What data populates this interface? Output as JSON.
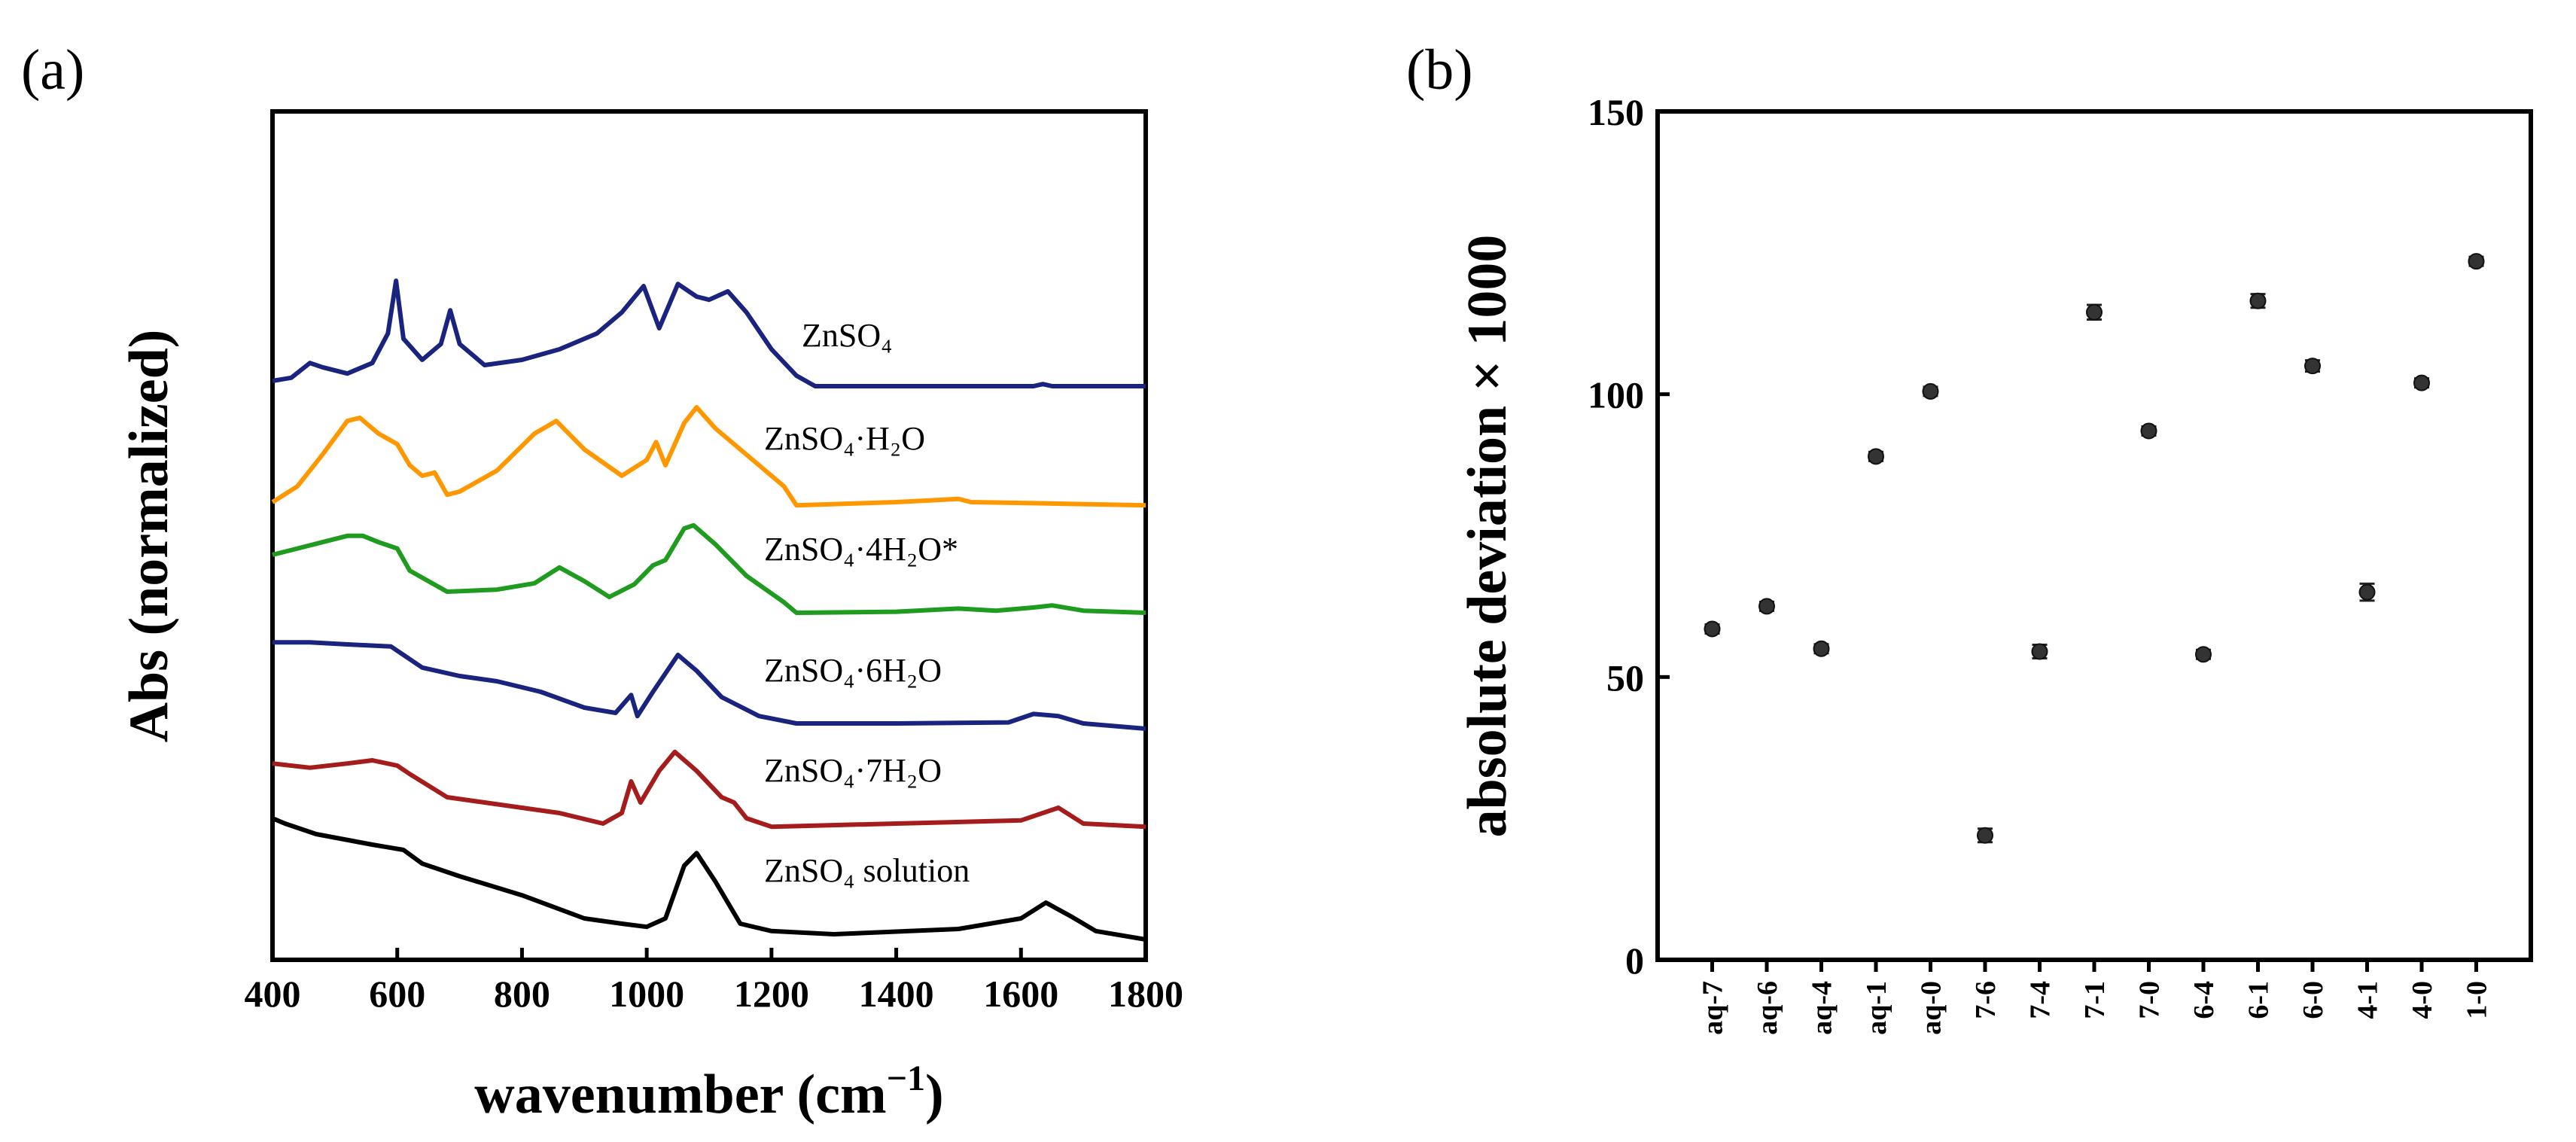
{
  "chart_data": [
    {
      "panel": "(a)",
      "type": "line",
      "xlabel": "wavenumber (cm",
      "xlabel_sup": "−1",
      "xlabel_close": ")",
      "ylabel": "Abs (normalized)",
      "xlim": [
        400,
        1800
      ],
      "xticks": [
        400,
        600,
        800,
        1000,
        1200,
        1400,
        1600,
        1800
      ],
      "yticks": [],
      "series": [
        {
          "name": "ZnSO₄",
          "color": "#1a237e",
          "baseline": 5.3,
          "points": [
            [
              400,
              0.05
            ],
            [
              430,
              0.08
            ],
            [
              460,
              0.22
            ],
            [
              480,
              0.18
            ],
            [
              520,
              0.12
            ],
            [
              560,
              0.22
            ],
            [
              585,
              0.5
            ],
            [
              598,
              1.0
            ],
            [
              610,
              0.45
            ],
            [
              640,
              0.25
            ],
            [
              670,
              0.4
            ],
            [
              685,
              0.72
            ],
            [
              700,
              0.4
            ],
            [
              740,
              0.2
            ],
            [
              800,
              0.25
            ],
            [
              860,
              0.35
            ],
            [
              920,
              0.5
            ],
            [
              960,
              0.7
            ],
            [
              995,
              0.95
            ],
            [
              1020,
              0.55
            ],
            [
              1050,
              0.97
            ],
            [
              1080,
              0.85
            ],
            [
              1100,
              0.82
            ],
            [
              1130,
              0.9
            ],
            [
              1160,
              0.7
            ],
            [
              1200,
              0.35
            ],
            [
              1240,
              0.1
            ],
            [
              1270,
              0.0
            ],
            [
              1400,
              0.0
            ],
            [
              1620,
              0.0
            ],
            [
              1635,
              0.02
            ],
            [
              1650,
              0.0
            ],
            [
              1800,
              0.0
            ]
          ]
        },
        {
          "name": "ZnSO₄·H₂O",
          "color": "#ff9800",
          "baseline": 4.15,
          "points": [
            [
              400,
              0.05
            ],
            [
              440,
              0.2
            ],
            [
              480,
              0.5
            ],
            [
              520,
              0.82
            ],
            [
              540,
              0.85
            ],
            [
              570,
              0.7
            ],
            [
              600,
              0.6
            ],
            [
              620,
              0.4
            ],
            [
              640,
              0.3
            ],
            [
              660,
              0.33
            ],
            [
              680,
              0.12
            ],
            [
              700,
              0.15
            ],
            [
              760,
              0.35
            ],
            [
              820,
              0.7
            ],
            [
              855,
              0.82
            ],
            [
              900,
              0.55
            ],
            [
              960,
              0.3
            ],
            [
              1000,
              0.45
            ],
            [
              1015,
              0.62
            ],
            [
              1030,
              0.4
            ],
            [
              1060,
              0.8
            ],
            [
              1080,
              0.95
            ],
            [
              1110,
              0.75
            ],
            [
              1160,
              0.5
            ],
            [
              1220,
              0.2
            ],
            [
              1240,
              0.02
            ],
            [
              1400,
              0.05
            ],
            [
              1500,
              0.08
            ],
            [
              1520,
              0.05
            ],
            [
              1620,
              0.04
            ],
            [
              1800,
              0.02
            ]
          ]
        },
        {
          "name": "ZnSO₄·4H₂O*",
          "color": "#1f9b1f",
          "baseline": 3.1,
          "points": [
            [
              400,
              0.6
            ],
            [
              440,
              0.66
            ],
            [
              480,
              0.72
            ],
            [
              520,
              0.78
            ],
            [
              545,
              0.78
            ],
            [
              570,
              0.72
            ],
            [
              600,
              0.66
            ],
            [
              620,
              0.45
            ],
            [
              650,
              0.35
            ],
            [
              680,
              0.25
            ],
            [
              760,
              0.27
            ],
            [
              820,
              0.33
            ],
            [
              860,
              0.48
            ],
            [
              900,
              0.35
            ],
            [
              940,
              0.2
            ],
            [
              980,
              0.32
            ],
            [
              1010,
              0.5
            ],
            [
              1030,
              0.55
            ],
            [
              1060,
              0.85
            ],
            [
              1075,
              0.88
            ],
            [
              1110,
              0.7
            ],
            [
              1160,
              0.4
            ],
            [
              1220,
              0.15
            ],
            [
              1240,
              0.05
            ],
            [
              1400,
              0.06
            ],
            [
              1500,
              0.09
            ],
            [
              1560,
              0.07
            ],
            [
              1620,
              0.1
            ],
            [
              1650,
              0.12
            ],
            [
              1700,
              0.07
            ],
            [
              1800,
              0.05
            ]
          ]
        },
        {
          "name": "ZnSO₄·6H₂O",
          "color": "#1a237e",
          "baseline": 2.05,
          "points": [
            [
              400,
              0.82
            ],
            [
              460,
              0.82
            ],
            [
              520,
              0.8
            ],
            [
              590,
              0.78
            ],
            [
              610,
              0.7
            ],
            [
              640,
              0.58
            ],
            [
              700,
              0.5
            ],
            [
              760,
              0.45
            ],
            [
              830,
              0.35
            ],
            [
              900,
              0.2
            ],
            [
              950,
              0.15
            ],
            [
              975,
              0.32
            ],
            [
              985,
              0.12
            ],
            [
              1010,
              0.35
            ],
            [
              1050,
              0.7
            ],
            [
              1080,
              0.55
            ],
            [
              1120,
              0.3
            ],
            [
              1180,
              0.12
            ],
            [
              1240,
              0.05
            ],
            [
              1400,
              0.05
            ],
            [
              1580,
              0.06
            ],
            [
              1620,
              0.14
            ],
            [
              1660,
              0.12
            ],
            [
              1700,
              0.05
            ],
            [
              1800,
              0.0
            ]
          ]
        },
        {
          "name": "ZnSO₄·7H₂O",
          "color": "#a51c1c",
          "baseline": 1.1,
          "points": [
            [
              400,
              0.62
            ],
            [
              460,
              0.58
            ],
            [
              520,
              0.62
            ],
            [
              560,
              0.65
            ],
            [
              600,
              0.6
            ],
            [
              620,
              0.52
            ],
            [
              680,
              0.3
            ],
            [
              740,
              0.25
            ],
            [
              800,
              0.2
            ],
            [
              860,
              0.15
            ],
            [
              930,
              0.05
            ],
            [
              960,
              0.15
            ],
            [
              975,
              0.45
            ],
            [
              990,
              0.25
            ],
            [
              1020,
              0.55
            ],
            [
              1045,
              0.73
            ],
            [
              1080,
              0.55
            ],
            [
              1120,
              0.3
            ],
            [
              1140,
              0.25
            ],
            [
              1160,
              0.1
            ],
            [
              1200,
              0.02
            ],
            [
              1400,
              0.05
            ],
            [
              1600,
              0.08
            ],
            [
              1660,
              0.2
            ],
            [
              1700,
              0.05
            ],
            [
              1800,
              0.02
            ]
          ]
        },
        {
          "name": "ZnSO₄ solution",
          "color": "#000000",
          "baseline": 0.05,
          "points": [
            [
              400,
              1.15
            ],
            [
              420,
              1.1
            ],
            [
              470,
              1.0
            ],
            [
              560,
              0.9
            ],
            [
              610,
              0.85
            ],
            [
              640,
              0.72
            ],
            [
              700,
              0.6
            ],
            [
              800,
              0.42
            ],
            [
              900,
              0.2
            ],
            [
              960,
              0.15
            ],
            [
              1000,
              0.12
            ],
            [
              1030,
              0.2
            ],
            [
              1060,
              0.7
            ],
            [
              1080,
              0.82
            ],
            [
              1110,
              0.55
            ],
            [
              1150,
              0.15
            ],
            [
              1200,
              0.08
            ],
            [
              1300,
              0.05
            ],
            [
              1500,
              0.1
            ],
            [
              1600,
              0.2
            ],
            [
              1640,
              0.35
            ],
            [
              1680,
              0.22
            ],
            [
              1720,
              0.08
            ],
            [
              1800,
              0.0
            ]
          ]
        }
      ],
      "annotations": [
        "ZnSO₄",
        "ZnSO₄·H₂O",
        "ZnSO₄·4H₂O*",
        "ZnSO₄·6H₂O",
        "ZnSO₄·7H₂O",
        "ZnSO₄ solution"
      ]
    },
    {
      "panel": "(b)",
      "type": "scatter",
      "ylabel": "absolute deviation × 1000",
      "xlabel": "",
      "ylim": [
        0,
        150
      ],
      "yticks": [
        0,
        50,
        100,
        150
      ],
      "categories": [
        "aq-7",
        "aq-6",
        "aq-4",
        "aq-1",
        "aq-0",
        "7-6",
        "7-4",
        "7-1",
        "7-0",
        "6-4",
        "6-1",
        "6-0",
        "4-1",
        "4-0",
        "1-0"
      ],
      "values": [
        58.5,
        62.5,
        55,
        89,
        100.5,
        22,
        54.5,
        114.5,
        93.5,
        54,
        116.5,
        105,
        65,
        102,
        123.5
      ],
      "errors": [
        0.8,
        0.8,
        0.8,
        0.8,
        0.8,
        1.2,
        1.2,
        1.3,
        0.8,
        0.8,
        1.2,
        1.0,
        1.5,
        0.8,
        0.8
      ]
    }
  ],
  "colors": {
    "axis": "#000000",
    "marker": "#333333"
  }
}
